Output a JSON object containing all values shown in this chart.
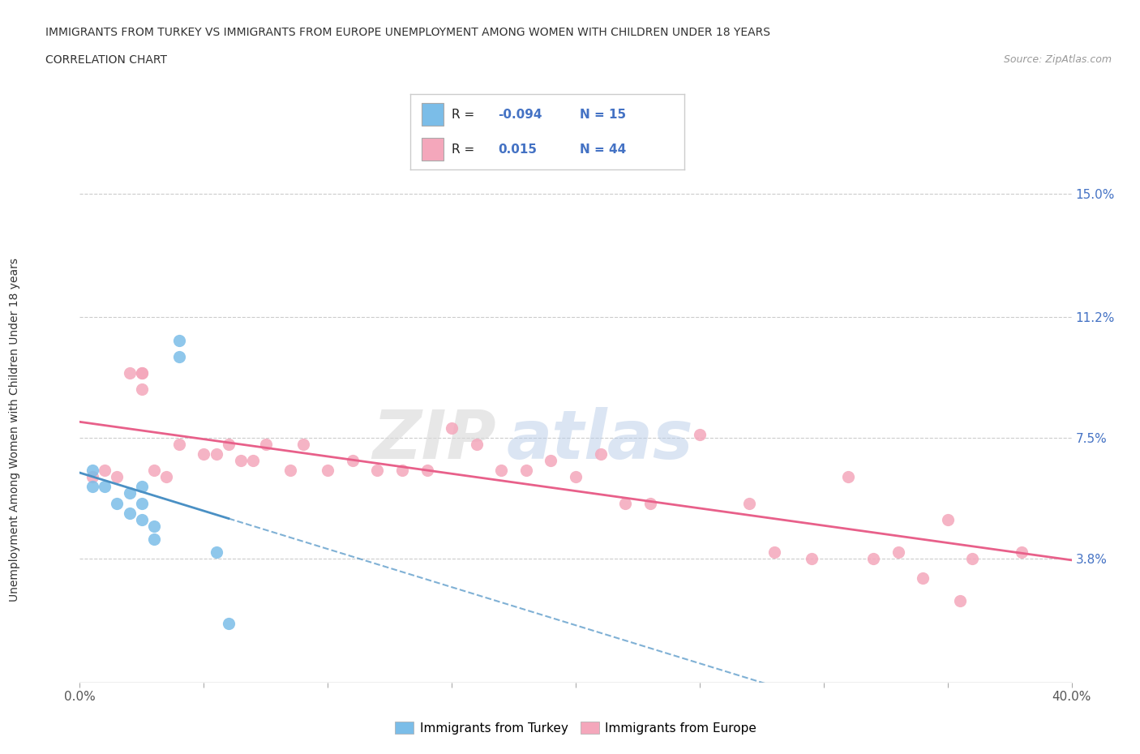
{
  "title_line1": "IMMIGRANTS FROM TURKEY VS IMMIGRANTS FROM EUROPE UNEMPLOYMENT AMONG WOMEN WITH CHILDREN UNDER 18 YEARS",
  "title_line2": "CORRELATION CHART",
  "source_text": "Source: ZipAtlas.com",
  "ylabel": "Unemployment Among Women with Children Under 18 years",
  "xlim": [
    0.0,
    0.4
  ],
  "ylim": [
    0.0,
    0.155
  ],
  "xticks": [
    0.0,
    0.05,
    0.1,
    0.15,
    0.2,
    0.25,
    0.3,
    0.35,
    0.4
  ],
  "xticklabels": [
    "0.0%",
    "",
    "",
    "",
    "",
    "",
    "",
    "",
    "40.0%"
  ],
  "ytick_positions": [
    0.038,
    0.075,
    0.112,
    0.15
  ],
  "ytick_labels": [
    "3.8%",
    "7.5%",
    "11.2%",
    "15.0%"
  ],
  "turkey_color": "#7bbde8",
  "europe_color": "#f4a7bb",
  "turkey_line_color": "#4a90c4",
  "europe_line_color": "#e8608a",
  "legend_R_turkey": "-0.094",
  "legend_N_turkey": "15",
  "legend_R_europe": "0.015",
  "legend_N_europe": "44",
  "watermark_zip": "ZIP",
  "watermark_atlas": "atlas",
  "turkey_scatter_x": [
    0.005,
    0.005,
    0.01,
    0.015,
    0.02,
    0.02,
    0.025,
    0.025,
    0.025,
    0.03,
    0.03,
    0.04,
    0.04,
    0.055,
    0.06
  ],
  "turkey_scatter_y": [
    0.065,
    0.06,
    0.06,
    0.055,
    0.052,
    0.058,
    0.06,
    0.055,
    0.05,
    0.048,
    0.044,
    0.105,
    0.1,
    0.04,
    0.018
  ],
  "europe_scatter_x": [
    0.005,
    0.01,
    0.015,
    0.02,
    0.025,
    0.025,
    0.025,
    0.03,
    0.035,
    0.04,
    0.05,
    0.055,
    0.06,
    0.065,
    0.07,
    0.075,
    0.085,
    0.09,
    0.1,
    0.11,
    0.12,
    0.13,
    0.14,
    0.15,
    0.16,
    0.17,
    0.18,
    0.19,
    0.2,
    0.21,
    0.22,
    0.23,
    0.25,
    0.27,
    0.28,
    0.295,
    0.31,
    0.32,
    0.33,
    0.34,
    0.35,
    0.355,
    0.36,
    0.38
  ],
  "europe_scatter_y": [
    0.063,
    0.065,
    0.063,
    0.095,
    0.095,
    0.095,
    0.09,
    0.065,
    0.063,
    0.073,
    0.07,
    0.07,
    0.073,
    0.068,
    0.068,
    0.073,
    0.065,
    0.073,
    0.065,
    0.068,
    0.065,
    0.065,
    0.065,
    0.078,
    0.073,
    0.065,
    0.065,
    0.068,
    0.063,
    0.07,
    0.055,
    0.055,
    0.076,
    0.055,
    0.04,
    0.038,
    0.063,
    0.038,
    0.04,
    0.032,
    0.05,
    0.025,
    0.038,
    0.04
  ],
  "background_color": "#ffffff",
  "grid_color": "#cccccc"
}
